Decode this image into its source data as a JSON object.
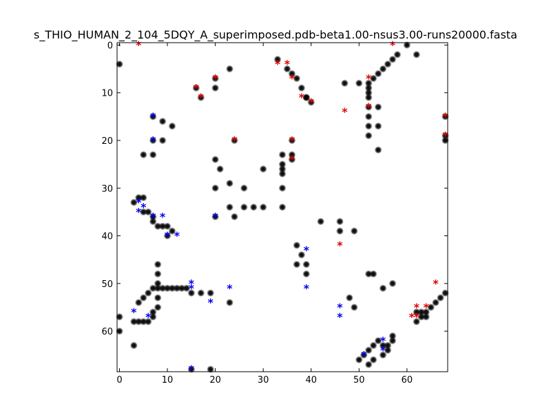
{
  "chart_data": {
    "type": "scatter",
    "title": "s_THIO_HUMAN_2_104_5DQY_A_superimposed.pdb-beta1.00-nsus3.00-runs20000.fasta",
    "xlabel": "",
    "ylabel": "",
    "xlim": [
      -0.5,
      68.5
    ],
    "ylim": [
      68.5,
      -0.5
    ],
    "x_ticks": [
      0,
      10,
      20,
      30,
      40,
      50,
      60
    ],
    "y_ticks": [
      0,
      10,
      20,
      30,
      40,
      50,
      60
    ],
    "grid": false,
    "colors": {
      "black": "#000000",
      "red": "#e00000",
      "blue": "#0000ee"
    },
    "black_points": [
      [
        0,
        4
      ],
      [
        0,
        57
      ],
      [
        0,
        60
      ],
      [
        7,
        15
      ],
      [
        9,
        16
      ],
      [
        11,
        17
      ],
      [
        7,
        20
      ],
      [
        9,
        20
      ],
      [
        5,
        23
      ],
      [
        7,
        23
      ],
      [
        20,
        24
      ],
      [
        21,
        26
      ],
      [
        23,
        29
      ],
      [
        20,
        30
      ],
      [
        26,
        30
      ],
      [
        23,
        34
      ],
      [
        26,
        34
      ],
      [
        28,
        34
      ],
      [
        24,
        36
      ],
      [
        20,
        36
      ],
      [
        30,
        34
      ],
      [
        23,
        5
      ],
      [
        20,
        7
      ],
      [
        16,
        9
      ],
      [
        20,
        9
      ],
      [
        17,
        11
      ],
      [
        33,
        3
      ],
      [
        35,
        5
      ],
      [
        36,
        6
      ],
      [
        37,
        7
      ],
      [
        38,
        9
      ],
      [
        39,
        11
      ],
      [
        40,
        12
      ],
      [
        39,
        11
      ],
      [
        30,
        26
      ],
      [
        34,
        23
      ],
      [
        34,
        25
      ],
      [
        34,
        26
      ],
      [
        34,
        27
      ],
      [
        36,
        23
      ],
      [
        34,
        30
      ],
      [
        34,
        34
      ],
      [
        24,
        20
      ],
      [
        36,
        20
      ],
      [
        36,
        24
      ],
      [
        37,
        42
      ],
      [
        38,
        44
      ],
      [
        37,
        46
      ],
      [
        39,
        46
      ],
      [
        39,
        48
      ],
      [
        42,
        37
      ],
      [
        46,
        37
      ],
      [
        46,
        39
      ],
      [
        49,
        39
      ],
      [
        48,
        53
      ],
      [
        49,
        55
      ],
      [
        47,
        8
      ],
      [
        50,
        8
      ],
      [
        52,
        8
      ],
      [
        52,
        9
      ],
      [
        52,
        10
      ],
      [
        52,
        11
      ],
      [
        53,
        7
      ],
      [
        54,
        6
      ],
      [
        55,
        5
      ],
      [
        56,
        4
      ],
      [
        57,
        3
      ],
      [
        58,
        2
      ],
      [
        60,
        0
      ],
      [
        62,
        2
      ],
      [
        52,
        13
      ],
      [
        52,
        15
      ],
      [
        52,
        17
      ],
      [
        52,
        19
      ],
      [
        54,
        13
      ],
      [
        54,
        17
      ],
      [
        54,
        22
      ],
      [
        52,
        48
      ],
      [
        53,
        48
      ],
      [
        55,
        51
      ],
      [
        57,
        50
      ],
      [
        3,
        33
      ],
      [
        4,
        32
      ],
      [
        5,
        32
      ],
      [
        5,
        35
      ],
      [
        6,
        35
      ],
      [
        7,
        36
      ],
      [
        7,
        37
      ],
      [
        8,
        38
      ],
      [
        9,
        38
      ],
      [
        10,
        38
      ],
      [
        11,
        39
      ],
      [
        10,
        40
      ],
      [
        4,
        54
      ],
      [
        5,
        53
      ],
      [
        6,
        52
      ],
      [
        7,
        51
      ],
      [
        8,
        51
      ],
      [
        9,
        51
      ],
      [
        10,
        51
      ],
      [
        11,
        51
      ],
      [
        12,
        51
      ],
      [
        13,
        51
      ],
      [
        14,
        51
      ],
      [
        8,
        53
      ],
      [
        8,
        55
      ],
      [
        7,
        56
      ],
      [
        7,
        57
      ],
      [
        6,
        58
      ],
      [
        5,
        58
      ],
      [
        4,
        58
      ],
      [
        3,
        58
      ],
      [
        3,
        63
      ],
      [
        8,
        46
      ],
      [
        8,
        48
      ],
      [
        8,
        50
      ],
      [
        15,
        52
      ],
      [
        17,
        52
      ],
      [
        19,
        52
      ],
      [
        23,
        54
      ],
      [
        19,
        68
      ],
      [
        15,
        68
      ],
      [
        50,
        66
      ],
      [
        51,
        65
      ],
      [
        52,
        64
      ],
      [
        53,
        63
      ],
      [
        54,
        62
      ],
      [
        55,
        63
      ],
      [
        56,
        63
      ],
      [
        57,
        62
      ],
      [
        57,
        61
      ],
      [
        56,
        64
      ],
      [
        55,
        65
      ],
      [
        53,
        66
      ],
      [
        52,
        67
      ],
      [
        62,
        58
      ],
      [
        63,
        57
      ],
      [
        64,
        56
      ],
      [
        65,
        55
      ],
      [
        66,
        54
      ],
      [
        67,
        53
      ],
      [
        68,
        52
      ],
      [
        62,
        56
      ],
      [
        63,
        56
      ],
      [
        64,
        57
      ],
      [
        68,
        15
      ],
      [
        68,
        19
      ],
      [
        68,
        20
      ]
    ],
    "red_stars": [
      [
        4,
        0
      ],
      [
        57,
        0
      ],
      [
        16,
        9
      ],
      [
        17,
        11
      ],
      [
        20,
        7
      ],
      [
        33,
        4
      ],
      [
        35,
        4
      ],
      [
        36,
        7
      ],
      [
        38,
        11
      ],
      [
        40,
        12
      ],
      [
        47,
        14
      ],
      [
        52,
        7
      ],
      [
        52,
        13
      ],
      [
        68,
        15
      ],
      [
        68,
        19
      ],
      [
        24,
        20
      ],
      [
        36,
        20
      ],
      [
        36,
        24
      ],
      [
        46,
        42
      ],
      [
        66,
        50
      ],
      [
        62,
        55
      ],
      [
        64,
        55
      ],
      [
        61,
        57
      ],
      [
        62,
        57
      ]
    ],
    "blue_stars": [
      [
        7,
        15
      ],
      [
        7,
        20
      ],
      [
        4,
        33
      ],
      [
        5,
        34
      ],
      [
        4,
        35
      ],
      [
        7,
        36
      ],
      [
        9,
        36
      ],
      [
        20,
        36
      ],
      [
        10,
        40
      ],
      [
        12,
        40
      ],
      [
        39,
        43
      ],
      [
        15,
        50
      ],
      [
        15,
        51
      ],
      [
        23,
        51
      ],
      [
        39,
        51
      ],
      [
        19,
        54
      ],
      [
        3,
        56
      ],
      [
        6,
        57
      ],
      [
        46,
        55
      ],
      [
        46,
        57
      ],
      [
        55,
        62
      ],
      [
        55,
        64
      ],
      [
        51,
        65
      ],
      [
        15,
        68
      ]
    ]
  }
}
